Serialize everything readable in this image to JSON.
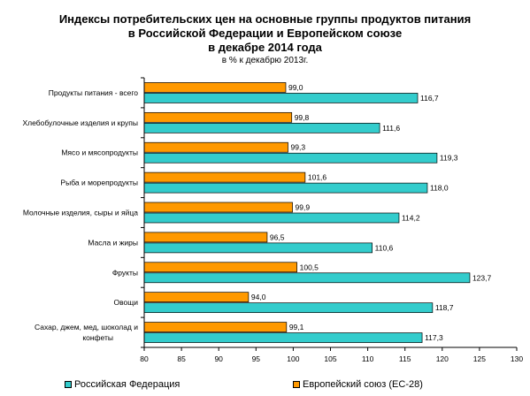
{
  "chart_data": {
    "type": "bar",
    "orientation": "horizontal",
    "title_lines": [
      "Индексы потребительских цен на основные группы продуктов питания",
      "в Российской Федерации и Европейском союзе",
      "в декабре 2014 года"
    ],
    "subtitle": "в % к декабрю 2013г.",
    "categories": [
      "Продукты питания - всего",
      "Хлебобулочные изделия и крупы",
      "Мясо и мясопродукты",
      "Рыба и морепродукты",
      "Молочные изделия, сыры и яйца",
      "Масла и жиры",
      "Фрукты",
      "Овощи",
      "Сахар, джем, мед, шоколад и конфеты"
    ],
    "series": [
      {
        "name": "Европейский союз (ЕС-28)",
        "color": "#FF9900",
        "values": [
          99.0,
          99.8,
          99.3,
          101.6,
          99.9,
          96.5,
          100.5,
          94.0,
          99.1
        ],
        "labels": [
          "99,0",
          "99,8",
          "99,3",
          "101,6",
          "99,9",
          "96,5",
          "100,5",
          "94,0",
          "99,1"
        ]
      },
      {
        "name": "Российская Федерация",
        "color": "#33CCCC",
        "values": [
          116.7,
          111.6,
          119.3,
          118.0,
          114.2,
          110.6,
          123.7,
          118.7,
          117.3
        ],
        "labels": [
          "116,7",
          "111,6",
          "119,3",
          "118,0",
          "114,2",
          "110,6",
          "123,7",
          "118,7",
          "117,3"
        ]
      }
    ],
    "xlim": [
      80,
      130
    ],
    "xticks": [
      80,
      85,
      90,
      95,
      100,
      105,
      110,
      115,
      120,
      125,
      130
    ],
    "legend_position": "bottom",
    "legend_order": [
      "Российская Федерация",
      "Европейский союз (ЕС-28)"
    ],
    "grid": false
  }
}
